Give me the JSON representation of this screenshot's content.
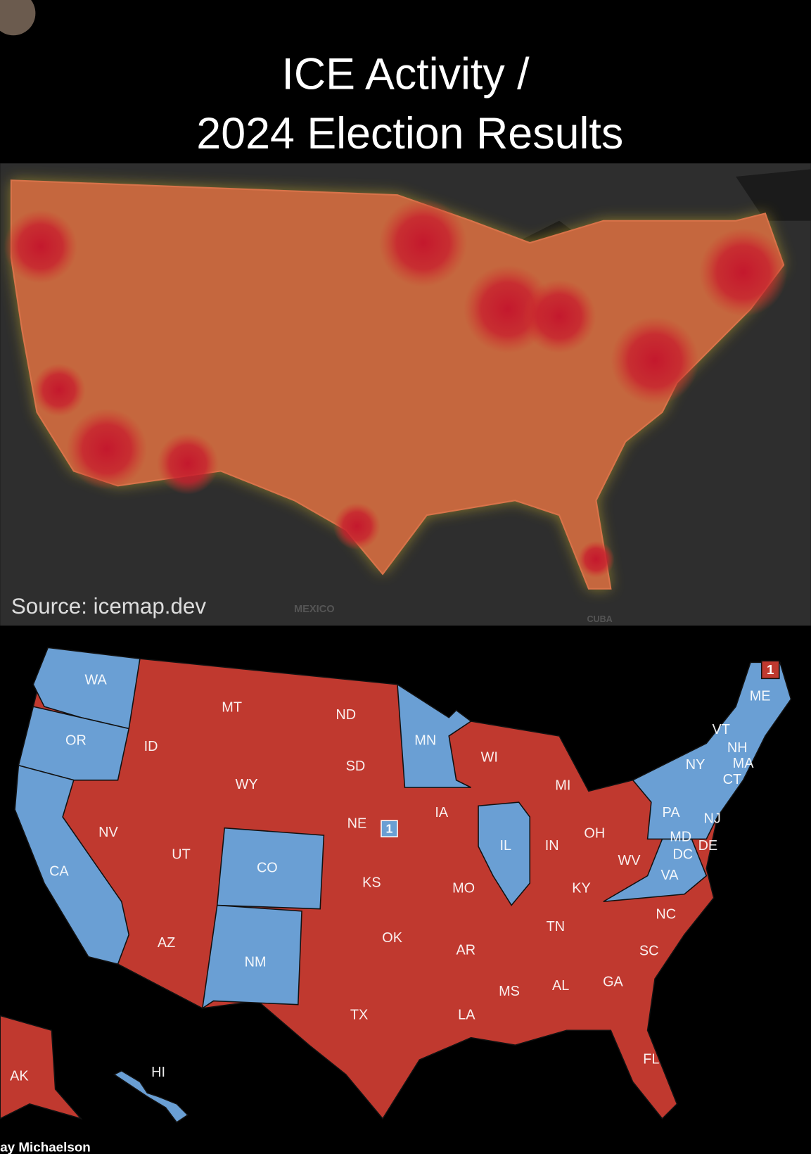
{
  "header": {
    "title_lines": [
      "ICE Activity /",
      "2024 Election Results"
    ]
  },
  "heat_map": {
    "source": "Source: icemap.dev",
    "place_labels": [
      "MEXICO",
      "CUBA"
    ]
  },
  "election_map": {
    "state_labels": [
      "WA",
      "OR",
      "ID",
      "MT",
      "ND",
      "MN",
      "WI",
      "MI",
      "SD",
      "WY",
      "NV",
      "UT",
      "CA",
      "CO",
      "NE",
      "IA",
      "IL",
      "IN",
      "OH",
      "PA",
      "NY",
      "VT",
      "NH",
      "MA",
      "CT",
      "NJ",
      "MD",
      "DE",
      "DC",
      "WV",
      "VA",
      "KS",
      "MO",
      "KY",
      "NC",
      "TN",
      "OK",
      "AR",
      "SC",
      "AZ",
      "NM",
      "GA",
      "AL",
      "MS",
      "TX",
      "LA",
      "FL",
      "AK",
      "HI",
      "ME"
    ],
    "district_markers": [
      "1",
      "1"
    ]
  },
  "footer": {
    "author": "ay Michaelson"
  }
}
